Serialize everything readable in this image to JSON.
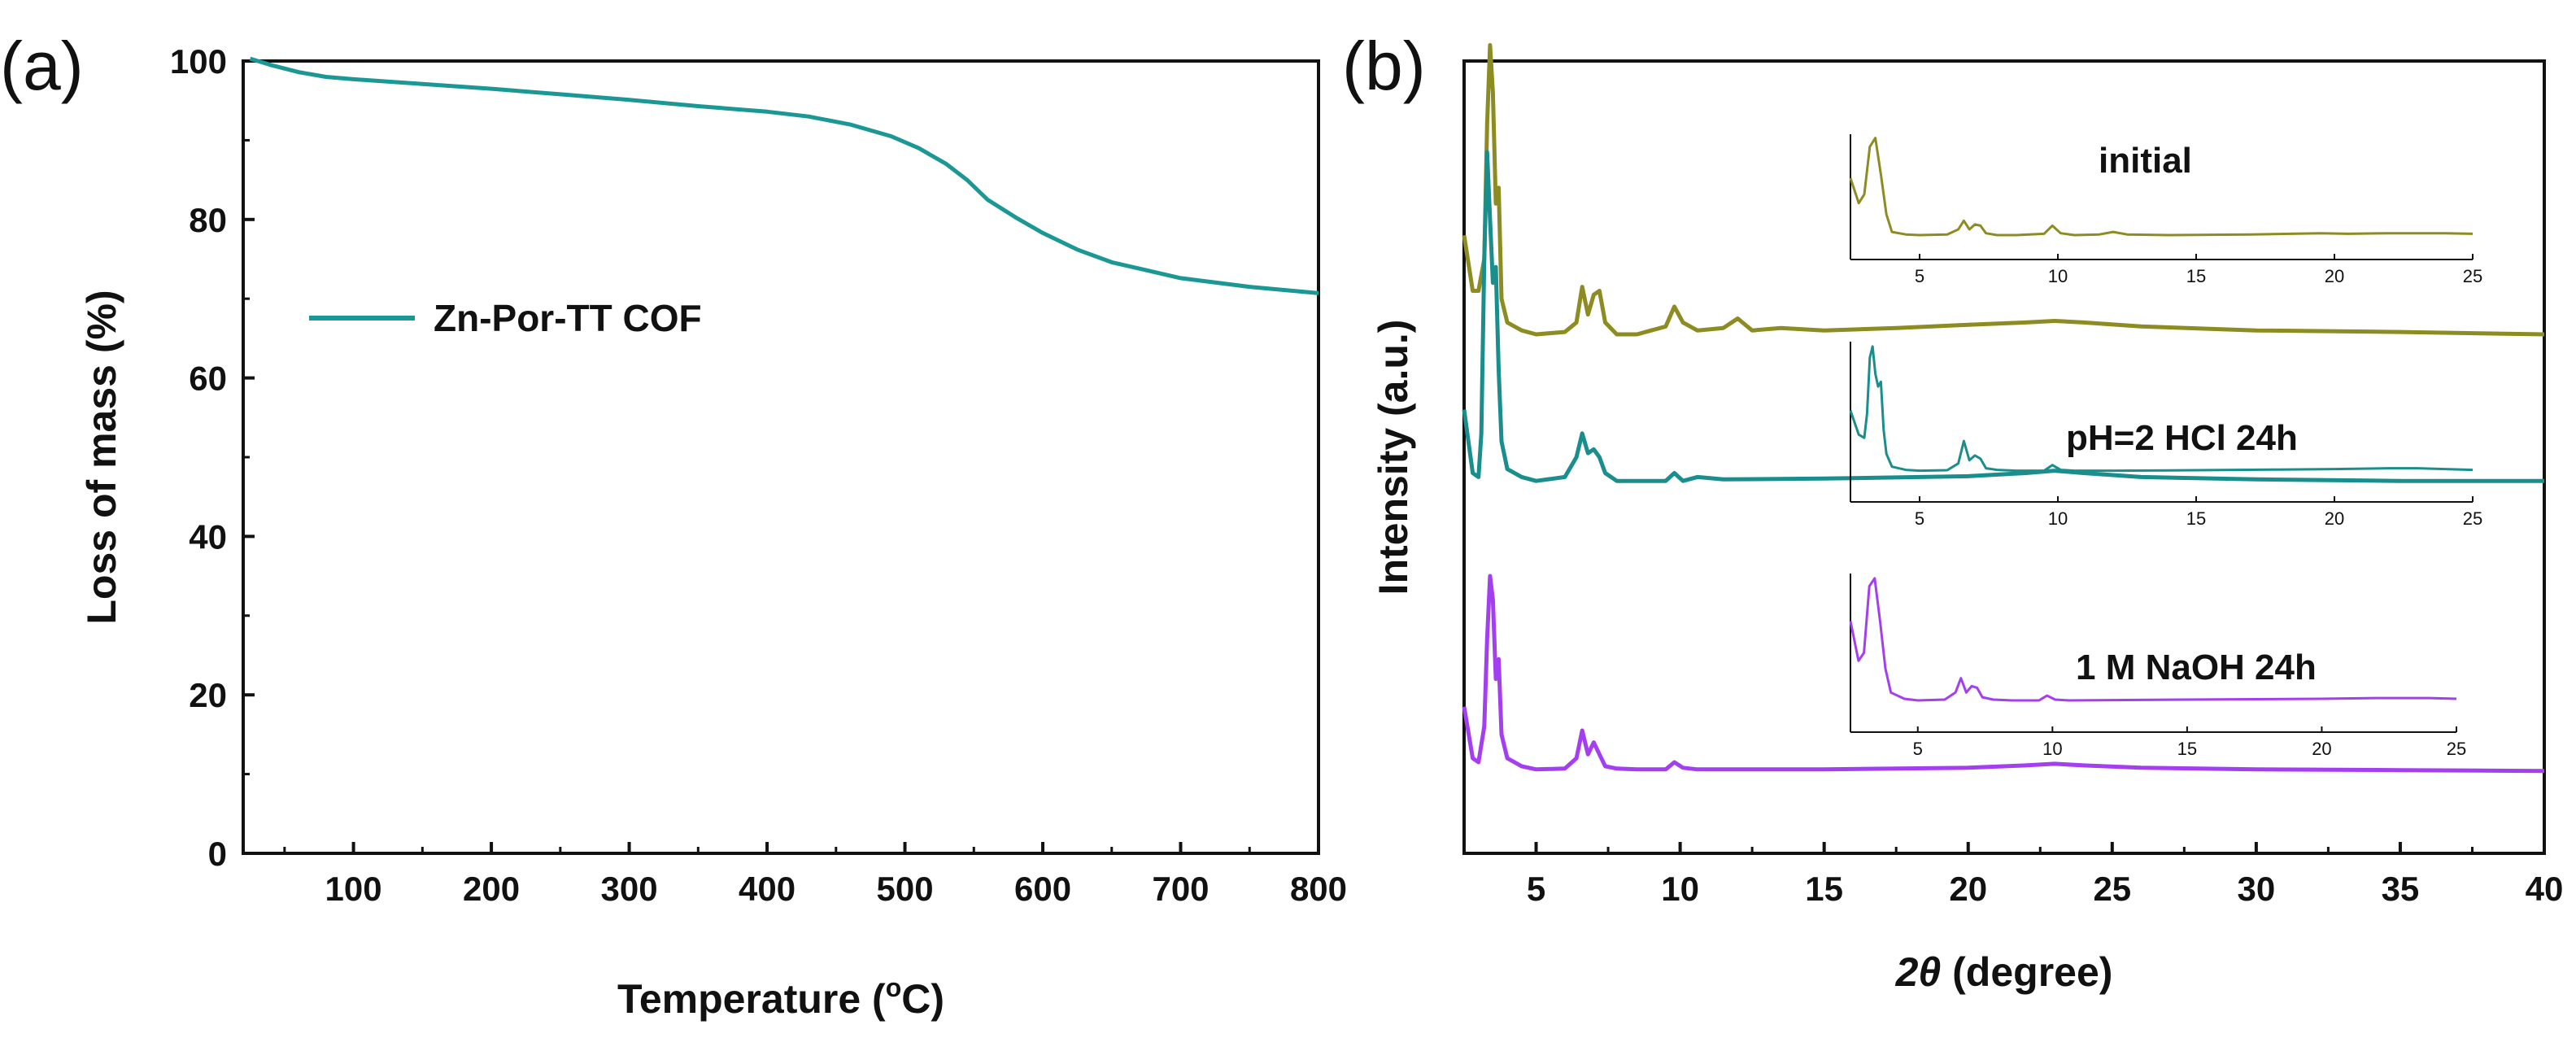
{
  "figure": {
    "label_a_open": "(",
    "label_a_letter": "a",
    "label_a_close": ")",
    "label_b_open": "(",
    "label_b_letter": "b",
    "label_b_close": ")"
  },
  "chart_data": [
    {
      "panel": "a",
      "type": "line",
      "title": "",
      "xlabel": "Temperature (°C)",
      "xlabel_parts": {
        "pre": "Temperature (",
        "sup": "o",
        "post": "C)"
      },
      "ylabel": "Loss of mass (%)",
      "xlim": [
        20,
        800
      ],
      "ylim": [
        0,
        100
      ],
      "x_ticks": [
        100,
        200,
        300,
        400,
        500,
        600,
        700,
        800
      ],
      "y_ticks": [
        0,
        20,
        40,
        60,
        80,
        100
      ],
      "legend": "top-left",
      "series": [
        {
          "name": "Zn-Por-TT COF",
          "color": "#1b9896",
          "x": [
            25,
            40,
            60,
            80,
            100,
            150,
            200,
            250,
            300,
            350,
            400,
            430,
            460,
            490,
            510,
            530,
            545,
            560,
            580,
            600,
            625,
            650,
            700,
            750,
            800
          ],
          "y": [
            100.3,
            99.5,
            98.6,
            98.0,
            97.7,
            97.1,
            96.5,
            95.8,
            95.1,
            94.3,
            93.6,
            93.0,
            92.0,
            90.5,
            89.0,
            87.0,
            85.0,
            82.5,
            80.3,
            78.3,
            76.2,
            74.6,
            72.6,
            71.5,
            70.7
          ]
        }
      ]
    },
    {
      "panel": "b",
      "type": "line",
      "title": "",
      "xlabel": "2θ (degree)",
      "xlabel_parts": {
        "italic": "2θ",
        "post": " (degree)"
      },
      "ylabel": "Intensity (a.u.)",
      "xlim": [
        2.5,
        40
      ],
      "ylim": [
        0,
        100
      ],
      "x_ticks": [
        5,
        10,
        15,
        20,
        25,
        30,
        35,
        40
      ],
      "y_ticks": [],
      "series": [
        {
          "name": "initial",
          "color": "#8c8c22",
          "x": [
            2.5,
            2.8,
            3.0,
            3.2,
            3.3,
            3.4,
            3.5,
            3.6,
            3.7,
            3.8,
            4.0,
            4.5,
            5.0,
            6.0,
            6.4,
            6.6,
            6.8,
            7.0,
            7.2,
            7.4,
            7.8,
            8.5,
            9.5,
            9.8,
            10.1,
            10.6,
            11.5,
            12.0,
            12.5,
            13.5,
            15,
            17.5,
            20,
            22,
            23,
            24,
            26,
            30,
            35,
            40
          ],
          "y": [
            78,
            71,
            71,
            75,
            92,
            102,
            96,
            82,
            84,
            70,
            67,
            66,
            65.5,
            65.8,
            67,
            71.5,
            68,
            70.5,
            71,
            67,
            65.5,
            65.5,
            66.5,
            69,
            67,
            66,
            66.3,
            67.5,
            66,
            66.3,
            66,
            66.3,
            66.7,
            67,
            67.2,
            67,
            66.5,
            66,
            65.8,
            65.5
          ]
        },
        {
          "name": "pH=2 HCl 24h",
          "color": "#1a8e8c",
          "x": [
            2.5,
            2.8,
            3.0,
            3.1,
            3.2,
            3.3,
            3.4,
            3.5,
            3.6,
            3.7,
            3.8,
            4.0,
            4.5,
            5.0,
            6.0,
            6.4,
            6.6,
            6.8,
            7.0,
            7.2,
            7.4,
            7.8,
            8.5,
            9.5,
            9.8,
            10.1,
            10.6,
            11.5,
            15,
            20,
            22,
            23,
            24,
            26,
            30,
            35,
            40
          ],
          "y": [
            56,
            48,
            47.5,
            53,
            75,
            88.5,
            80,
            72,
            74,
            61,
            52,
            48.5,
            47.5,
            47,
            47.5,
            50,
            53,
            50.5,
            51,
            50,
            48,
            47,
            47,
            47,
            48,
            47,
            47.5,
            47.2,
            47.3,
            47.6,
            48,
            48.3,
            48,
            47.5,
            47.2,
            47,
            47
          ]
        },
        {
          "name": "1 M NaOH 24h",
          "color": "#a43ff0",
          "x": [
            2.5,
            2.8,
            3.0,
            3.2,
            3.3,
            3.4,
            3.5,
            3.6,
            3.7,
            3.8,
            4.0,
            4.5,
            5.0,
            6.0,
            6.4,
            6.6,
            6.8,
            7.0,
            7.2,
            7.4,
            7.8,
            8.5,
            9.5,
            9.8,
            10.1,
            10.6,
            15,
            20,
            22,
            23,
            24,
            26,
            30,
            35,
            40
          ],
          "y": [
            18.5,
            12,
            11.5,
            16,
            27,
            35,
            32,
            22,
            24.5,
            15,
            12,
            11,
            10.6,
            10.7,
            12,
            15.5,
            12.5,
            14,
            12.5,
            11,
            10.7,
            10.6,
            10.6,
            11.5,
            10.8,
            10.6,
            10.6,
            10.8,
            11.1,
            11.3,
            11.1,
            10.8,
            10.6,
            10.5,
            10.4
          ]
        }
      ],
      "insets": [
        {
          "label": "initial",
          "color": "#8c8c22",
          "xlim": [
            2.5,
            25
          ],
          "x_ticks": [
            5,
            10,
            15,
            20,
            25
          ],
          "x": [
            2.5,
            2.8,
            3.0,
            3.2,
            3.4,
            3.6,
            3.8,
            4.0,
            4.5,
            5.0,
            6.0,
            6.4,
            6.6,
            6.8,
            7.0,
            7.2,
            7.4,
            7.8,
            8.5,
            9.5,
            9.8,
            10.1,
            10.6,
            11.5,
            12.0,
            12.5,
            14,
            17,
            19.5,
            20.5,
            22,
            24,
            25
          ],
          "y": [
            65,
            45,
            52,
            90,
            97,
            68,
            36,
            22,
            20,
            19.5,
            20,
            24,
            31,
            24,
            28,
            27,
            21,
            19.5,
            19.5,
            20.5,
            27,
            21,
            19.5,
            20,
            22,
            20,
            19.5,
            20,
            21,
            20.5,
            21,
            21,
            20.5
          ]
        },
        {
          "label": "pH=2 HCl 24h",
          "color": "#1a8e8c",
          "xlim": [
            2.5,
            25
          ],
          "x_ticks": [
            5,
            10,
            15,
            20,
            25
          ],
          "x": [
            2.5,
            2.8,
            3.0,
            3.1,
            3.2,
            3.3,
            3.4,
            3.5,
            3.6,
            3.7,
            3.8,
            4.0,
            4.5,
            5.0,
            6.0,
            6.4,
            6.6,
            6.8,
            7.0,
            7.2,
            7.4,
            7.8,
            8.5,
            9.5,
            9.8,
            10.1,
            10.6,
            12,
            15,
            18,
            20,
            22,
            23,
            24,
            25
          ],
          "y": [
            57,
            42,
            40,
            55,
            90,
            97,
            80,
            72,
            75,
            45,
            30,
            22,
            20,
            19.5,
            19.8,
            24,
            38,
            26,
            29,
            27,
            21,
            20,
            19.5,
            19.5,
            23,
            20,
            19.5,
            19.5,
            19.8,
            20.2,
            20.5,
            21,
            21,
            20.5,
            20
          ]
        },
        {
          "label": "1 M NaOH 24h",
          "color": "#a43ff0",
          "xlim": [
            2.5,
            25
          ],
          "x_ticks": [
            5,
            10,
            15,
            20,
            25
          ],
          "x": [
            2.5,
            2.8,
            3.0,
            3.2,
            3.4,
            3.6,
            3.8,
            4.0,
            4.5,
            5.0,
            6.0,
            6.4,
            6.6,
            6.8,
            7.0,
            7.2,
            7.4,
            7.8,
            8.5,
            9.5,
            9.8,
            10.1,
            10.6,
            15,
            20,
            22,
            24,
            25
          ],
          "y": [
            70,
            45,
            50,
            92,
            97,
            70,
            40,
            25,
            21,
            20,
            20.5,
            25,
            34,
            25,
            29,
            28,
            22,
            20.5,
            20,
            20,
            23,
            20.5,
            20,
            20.5,
            21,
            21.5,
            21.5,
            21
          ]
        }
      ]
    }
  ]
}
